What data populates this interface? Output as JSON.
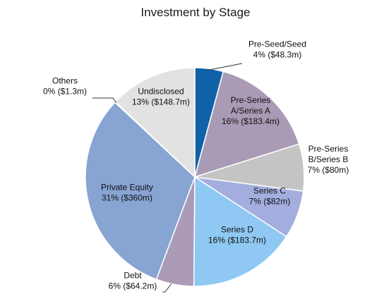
{
  "chart_data": {
    "type": "pie",
    "title": "Investment by Stage",
    "unit": "$m",
    "start_angle_deg": 0,
    "direction": "clockwise",
    "slices": [
      {
        "name": "Pre-Seed/Seed",
        "label_lines": [
          "Pre-Seed/Seed",
          "4% ($48.3m)"
        ],
        "percent": 4,
        "value": 48.3,
        "color": "#0f62a8",
        "label_pos": "outside",
        "leader": true
      },
      {
        "name": "Pre-Series A/Series A",
        "label_lines": [
          "Pre-Series",
          "A/Series A",
          "16% ($183.4m)"
        ],
        "percent": 16,
        "value": 183.4,
        "color": "#a99bb6",
        "label_pos": "inside",
        "leader": false
      },
      {
        "name": "Pre-Series B/Series B",
        "label_lines": [
          "Pre-Series",
          "B/Series B",
          "7% ($80m)"
        ],
        "percent": 7,
        "value": 80,
        "color": "#c4c4c4",
        "label_pos": "outside",
        "leader": false
      },
      {
        "name": "Series C",
        "label_lines": [
          "Series C",
          "7% ($82m)"
        ],
        "percent": 7,
        "value": 82,
        "color": "#a3aede",
        "label_pos": "inside",
        "leader": false
      },
      {
        "name": "Series D",
        "label_lines": [
          "Series D",
          "16% ($183.7m)"
        ],
        "percent": 16,
        "value": 183.7,
        "color": "#8fc8f2",
        "label_pos": "inside",
        "leader": false
      },
      {
        "name": "Debt",
        "label_lines": [
          "Debt",
          "6% ($64.2m)"
        ],
        "percent": 6,
        "value": 64.2,
        "color": "#ab9bb6",
        "label_pos": "outside",
        "leader": true
      },
      {
        "name": "Private Equity",
        "label_lines": [
          "Private Equity",
          "31% ($360m)"
        ],
        "percent": 31,
        "value": 360,
        "color": "#87a4d3",
        "label_pos": "inside",
        "leader": false
      },
      {
        "name": "Others",
        "label_lines": [
          "Others",
          "0% ($1.3m)"
        ],
        "percent": 0,
        "value": 1.3,
        "color": "#9a9a9a",
        "label_pos": "outside",
        "leader": true
      },
      {
        "name": "Undisclosed",
        "label_lines": [
          "Undisclosed",
          "13% ($148.7m)"
        ],
        "percent": 13,
        "value": 148.7,
        "color": "#e2e2e2",
        "label_pos": "inside",
        "leader": false
      }
    ]
  }
}
